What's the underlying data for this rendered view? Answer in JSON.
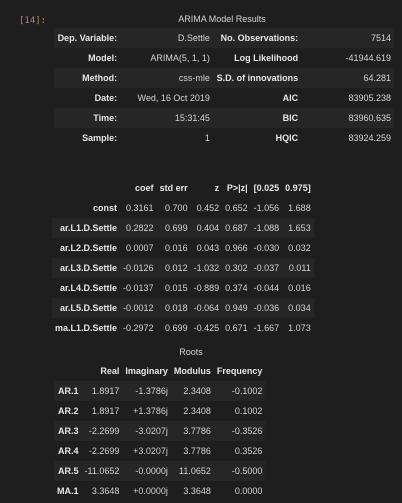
{
  "cell": {
    "prompt": "[14]:"
  },
  "summary": {
    "title": "ARIMA Model Results",
    "rows": [
      [
        "Dep. Variable:",
        "D.Settle",
        "No. Observations:",
        "7514"
      ],
      [
        "Model:",
        "ARIMA(5, 1, 1)",
        "Log Likelihood",
        "-41944.619"
      ],
      [
        "Method:",
        "css-mle",
        "S.D. of innovations",
        "64.281"
      ],
      [
        "Date:",
        "Wed, 16 Oct 2019",
        "AIC",
        "83905.238"
      ],
      [
        "Time:",
        "15:31:45",
        "BIC",
        "83960.635"
      ],
      [
        "Sample:",
        "1",
        "HQIC",
        "83924.259"
      ]
    ]
  },
  "coef": {
    "headers": [
      "",
      "coef",
      "std err",
      "z",
      "P>|z|",
      "[0.025",
      "0.975]"
    ],
    "rows": [
      [
        "const",
        "0.3161",
        "0.700",
        "0.452",
        "0.652",
        "-1.056",
        "1.688"
      ],
      [
        "ar.L1.D.Settle",
        "0.2822",
        "0.699",
        "0.404",
        "0.687",
        "-1.088",
        "1.653"
      ],
      [
        "ar.L2.D.Settle",
        "0.0007",
        "0.016",
        "0.043",
        "0.966",
        "-0.030",
        "0.032"
      ],
      [
        "ar.L3.D.Settle",
        "-0.0126",
        "0.012",
        "-1.032",
        "0.302",
        "-0.037",
        "0.011"
      ],
      [
        "ar.L4.D.Settle",
        "-0.0137",
        "0.015",
        "-0.889",
        "0.374",
        "-0.044",
        "0.016"
      ],
      [
        "ar.L5.D.Settle",
        "-0.0012",
        "0.018",
        "-0.064",
        "0.949",
        "-0.036",
        "0.034"
      ],
      [
        "ma.L1.D.Settle",
        "-0.2972",
        "0.699",
        "-0.425",
        "0.671",
        "-1.667",
        "1.073"
      ]
    ]
  },
  "roots": {
    "title": "Roots",
    "headers": [
      "",
      "Real",
      "Imaginary",
      "Modulus",
      "Frequency"
    ],
    "rows": [
      [
        "AR.1",
        "1.8917",
        "-1.3786j",
        "2.3408",
        "-0.1002"
      ],
      [
        "AR.2",
        "1.8917",
        "+1.3786j",
        "2.3408",
        "0.1002"
      ],
      [
        "AR.3",
        "-2.2699",
        "-3.0207j",
        "3.7786",
        "-0.3526"
      ],
      [
        "AR.4",
        "-2.2699",
        "+3.0207j",
        "3.7786",
        "0.3526"
      ],
      [
        "AR.5",
        "-11.0652",
        "-0.0000j",
        "11.0652",
        "-0.5000"
      ],
      [
        "MA.1",
        "3.3648",
        "+0.0000j",
        "3.3648",
        "0.0000"
      ]
    ]
  }
}
